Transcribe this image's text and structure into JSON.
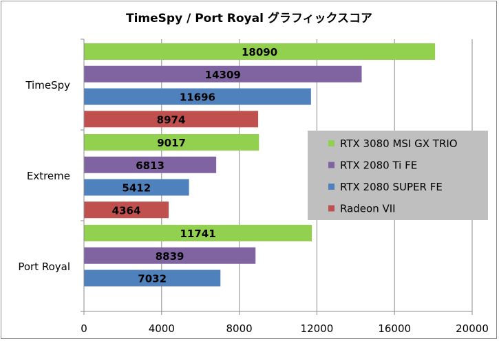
{
  "chart_data": {
    "type": "bar",
    "orientation": "horizontal",
    "title": "TimeSpy / Port Royal グラフィックスコア",
    "categories": [
      "TimeSpy",
      "Extreme",
      "Port Royal"
    ],
    "series": [
      {
        "name": "RTX 3080 MSI GX TRIO",
        "color": "#92d050",
        "values": [
          18090,
          9017,
          11741
        ]
      },
      {
        "name": "RTX 2080 Ti FE",
        "color": "#8064a2",
        "values": [
          14309,
          6813,
          8839
        ]
      },
      {
        "name": "RTX 2080 SUPER FE",
        "color": "#4f81bd",
        "values": [
          11696,
          5412,
          7032
        ]
      },
      {
        "name": "Radeon VII",
        "color": "#c0504d",
        "values": [
          8974,
          4364,
          null
        ]
      }
    ],
    "xlim": [
      0,
      20000
    ],
    "xticks": [
      "0",
      "4000",
      "8000",
      "12000",
      "16000",
      "20000"
    ],
    "xlabel": "",
    "ylabel": "",
    "grid": "vertical",
    "legend_position": "right"
  }
}
